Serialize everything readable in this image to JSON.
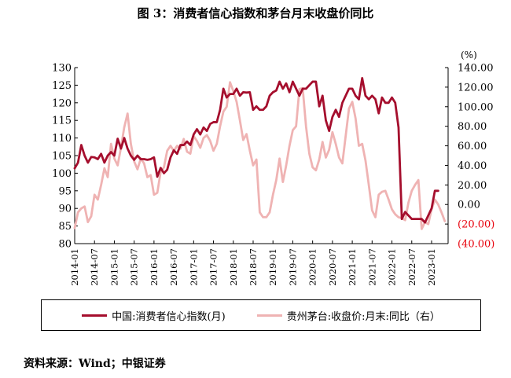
{
  "title": "图 3：消费者信心指数和茅台月末收盘价同比",
  "source": "资料来源：Wind；中银证券",
  "colors": {
    "china": "#A50E2D",
    "moutai": "#EFB3B3",
    "right_negative": "#E8000B"
  },
  "chart_data": {
    "type": "line",
    "y_left": {
      "min": 80,
      "max": 130,
      "ticks": [
        80,
        85,
        90,
        95,
        100,
        105,
        110,
        115,
        120,
        125,
        130
      ]
    },
    "y_right": {
      "unit_label": "(%)",
      "min": -40,
      "max": 140,
      "ticks": [
        -40,
        -20,
        0,
        20,
        40,
        60,
        80,
        100,
        120,
        140
      ],
      "tick_labels": [
        "(40.00)",
        "(20.00)",
        "0.00",
        "20.00",
        "40.00",
        "60.00",
        "80.00",
        "100.00",
        "120.00",
        "140.00"
      ]
    },
    "x_start": "2014-01",
    "x_end": "2023-06",
    "x_tick_labels": [
      "2014-01",
      "2014-07",
      "2015-01",
      "2015-07",
      "2016-01",
      "2016-07",
      "2017-01",
      "2017-07",
      "2018-01",
      "2018-07",
      "2019-01",
      "2019-07",
      "2020-01",
      "2020-07",
      "2021-01",
      "2021-07",
      "2022-01",
      "2022-07",
      "2023-01"
    ],
    "series": [
      {
        "name": "中国:消费者信心指数(月)",
        "axis": "left",
        "values": [
          101.4,
          103.0,
          108.0,
          105.0,
          103.0,
          104.6,
          104.5,
          104.0,
          105.5,
          103.0,
          105.0,
          106.0,
          105.0,
          109.8,
          107.0,
          110.0,
          107.0,
          105.0,
          103.8,
          105.0,
          104.0,
          104.0,
          103.8,
          104.0,
          104.5,
          99.0,
          101.5,
          100.0,
          101.0,
          104.5,
          106.5,
          105.5,
          108.0,
          108.0,
          109.0,
          108.0,
          111.0,
          112.5,
          111.0,
          113.0,
          112.0,
          114.0,
          114.5,
          114.5,
          118.0,
          124.0,
          121.5,
          122.5,
          122.5,
          124.0,
          122.0,
          123.0,
          122.9,
          123.0,
          118.0,
          119.0,
          118.0,
          118.0,
          119.0,
          122.0,
          123.0,
          123.5,
          126.0,
          124.0,
          125.5,
          123.0,
          126.0,
          124.0,
          122.0,
          124.0,
          124.0,
          125.0,
          126.0,
          126.0,
          119.0,
          122.0,
          115.0,
          112.0,
          116.0,
          118.0,
          116.0,
          120.0,
          122.0,
          124.0,
          124.0,
          122.0,
          121.0,
          127.0,
          122.0,
          121.0,
          122.0,
          121.0,
          117.0,
          121.5,
          120.0,
          120.0,
          121.5,
          120.0,
          113.0,
          87.0,
          89.0,
          88.0,
          87.0,
          87.0,
          87.0,
          87.0,
          86.0,
          88.0,
          90.0,
          95.0,
          95.0
        ]
      },
      {
        "name": "贵州茅台:收盘价:月末:同比（右）",
        "axis": "right",
        "values": [
          -24.0,
          -8.0,
          -4.0,
          -2.0,
          -18.0,
          -12.0,
          10.0,
          5.0,
          20.0,
          37.0,
          28.0,
          62.0,
          47.0,
          40.0,
          58.0,
          79.0,
          93.0,
          62.0,
          44.0,
          36.0,
          47.0,
          42.0,
          28.0,
          30.0,
          10.0,
          12.0,
          33.0,
          38.0,
          55.0,
          60.0,
          55.0,
          60.0,
          57.0,
          67.0,
          54.0,
          52.0,
          70.0,
          65.0,
          58.0,
          68.0,
          71.0,
          65.0,
          55.0,
          62.0,
          80.0,
          95.0,
          100.0,
          125.0,
          116.0,
          105.0,
          86.0,
          66.0,
          72.0,
          55.0,
          40.0,
          46.0,
          -8.0,
          -13.0,
          -13.0,
          -8.0,
          10.0,
          25.0,
          47.0,
          23.0,
          40.0,
          60.0,
          76.0,
          80.0,
          118.0,
          119.0,
          80.0,
          52.0,
          38.0,
          35.0,
          46.0,
          64.0,
          48.0,
          56.0,
          74.0,
          62.0,
          48.0,
          42.0,
          70.0,
          98.0,
          105.0,
          88.0,
          60.0,
          62.0,
          45.0,
          20.0,
          -6.0,
          -13.0,
          10.0,
          13.0,
          14.0,
          5.0,
          -5.0,
          -10.0,
          -13.0,
          -14.0,
          -16.0,
          2.0,
          14.0,
          20.0,
          25.0,
          -25.0,
          -18.0,
          -20.0,
          -5.0,
          5.0,
          0.0,
          -8.0,
          -17.0
        ]
      }
    ]
  }
}
